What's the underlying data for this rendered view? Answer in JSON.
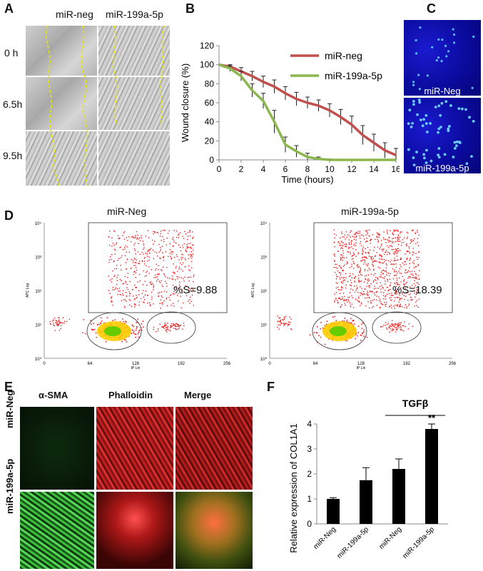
{
  "panels": {
    "A": "A",
    "B": "B",
    "C": "C",
    "D": "D",
    "E": "E",
    "F": "F"
  },
  "panel_a": {
    "col_labels": [
      "miR-neg",
      "miR-199a-5p"
    ],
    "row_labels": [
      "0 h",
      "6.5h",
      "9.5h"
    ]
  },
  "panel_c": {
    "labels": [
      "miR-Neg",
      "miR-199a-5p"
    ]
  },
  "panel_d": {
    "titles": [
      "miR-Neg",
      "miR-199a-5p"
    ],
    "annotations": [
      "%S=9.88",
      "%S=18.39"
    ],
    "ylabel": "APC Log",
    "xlabel": "IP Lin",
    "x_ticks": [
      "0",
      "64",
      "128",
      "192",
      "256"
    ],
    "y_ticks": [
      "10⁰",
      "10¹",
      "10²",
      "10³",
      "10⁴"
    ]
  },
  "panel_e": {
    "col_labels": [
      "α-SMA",
      "Phalloidin",
      "Merge"
    ],
    "row_labels": [
      "miR-Neg",
      "miR-199a-5p"
    ]
  },
  "chart_data": [
    {
      "panel": "B",
      "type": "line",
      "ylabel": "Wound closure (%)",
      "xlabel": "Time (hours)",
      "xlim": [
        0,
        16
      ],
      "ylim": [
        0,
        120
      ],
      "x_ticks": [
        "0",
        "2",
        "4",
        "6",
        "8",
        "10",
        "12",
        "14",
        "16"
      ],
      "y_ticks": [
        "0",
        "20",
        "40",
        "60",
        "80",
        "100",
        "120"
      ],
      "legend_position": "top-right",
      "series": [
        {
          "name": "miR-neg",
          "color": "#c0504d",
          "x": [
            0,
            1,
            2,
            3,
            4,
            5,
            6,
            7,
            8,
            9,
            10,
            11,
            12,
            13,
            14,
            15,
            16
          ],
          "y": [
            100,
            98,
            93,
            88,
            82,
            77,
            70,
            64,
            60,
            57,
            52,
            45,
            37,
            26,
            18,
            10,
            5
          ],
          "err": [
            0,
            2,
            4,
            5,
            6,
            7,
            7,
            7,
            6,
            6,
            7,
            8,
            9,
            10,
            9,
            8,
            7
          ]
        },
        {
          "name": "miR-199a-5p",
          "color": "#8cb64e",
          "x": [
            0,
            1,
            2,
            3,
            4,
            5,
            6,
            7,
            8,
            9,
            10,
            11,
            12,
            13,
            14,
            15,
            16
          ],
          "y": [
            100,
            96,
            88,
            73,
            62,
            40,
            16,
            9,
            3,
            1,
            0,
            0,
            0,
            0,
            0,
            0,
            0
          ],
          "err": [
            0,
            3,
            5,
            7,
            8,
            12,
            8,
            6,
            4,
            2,
            1,
            0,
            0,
            0,
            0,
            0,
            0
          ]
        }
      ]
    },
    {
      "panel": "F",
      "type": "bar",
      "ylabel": "Relative expression of COL1A1",
      "categories": [
        "miR-Neg",
        "miR-199a-5p",
        "miR-Neg",
        "miR-199a-5p"
      ],
      "values": [
        1.0,
        1.75,
        2.2,
        3.8
      ],
      "errors": [
        0.05,
        0.5,
        0.4,
        0.2
      ],
      "ylim": [
        0,
        4
      ],
      "y_ticks": [
        "0",
        "1",
        "2",
        "3",
        "4"
      ],
      "group_label": "TGFβ",
      "significance": "**",
      "color": "#000000"
    }
  ]
}
